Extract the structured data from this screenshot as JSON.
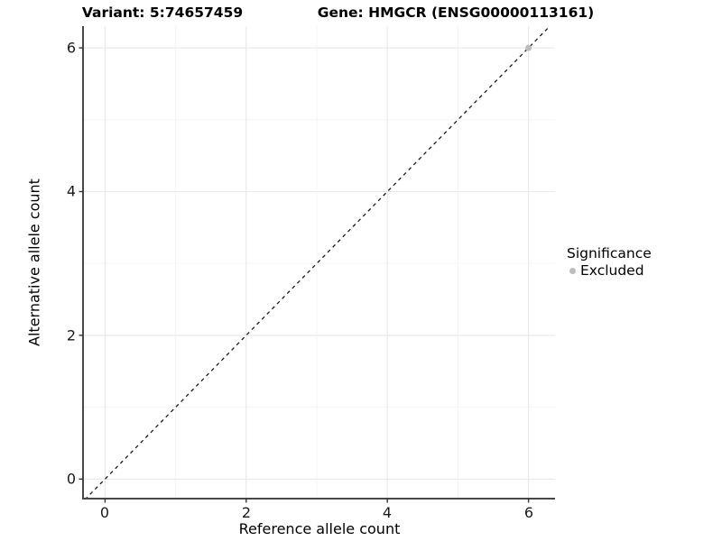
{
  "titles": {
    "variant": "Variant: 5:74657459",
    "gene": "Gene: HMGCR (ENSG00000113161)"
  },
  "chart_data": {
    "type": "scatter",
    "xlabel": "Reference allele count",
    "ylabel": "Alternative allele count",
    "x_ticks": [
      0,
      2,
      4,
      6
    ],
    "y_ticks": [
      0,
      2,
      4,
      6
    ],
    "x_tick_labels": [
      "0",
      "2",
      "4",
      "6"
    ],
    "y_tick_labels": [
      "0",
      "2",
      "4",
      "6"
    ],
    "x_grid_values": [
      0,
      1,
      2,
      3,
      4,
      5,
      6
    ],
    "y_grid_values": [
      0,
      1,
      2,
      3,
      4,
      5,
      6
    ],
    "xlim": [
      -0.3,
      6.38
    ],
    "ylim": [
      -0.28,
      6.3
    ],
    "grid": true,
    "points": [
      {
        "x": 6,
        "y": 6,
        "series": "Excluded"
      }
    ],
    "reference_line": {
      "slope": 1,
      "intercept": 0,
      "style": "dashed"
    },
    "legend": {
      "title": "Significance",
      "position": "right",
      "entries": [
        {
          "label": "Excluded",
          "color": "#bdbdbd"
        }
      ]
    }
  },
  "colors": {
    "background": "#ffffff",
    "panel_background": "#ffffff",
    "grid_major": "#e8e8e8",
    "grid_minor": "#f3f3f3",
    "axis_line": "#474747",
    "tick_mark": "#333333",
    "reference_line": "#1a1a1a",
    "excluded_point": "#bdbdbd",
    "text": "#000000"
  }
}
